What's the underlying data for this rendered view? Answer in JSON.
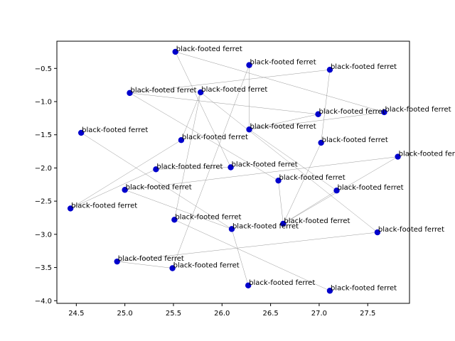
{
  "chart_data": {
    "type": "scatter",
    "title": "",
    "xlabel": "",
    "ylabel": "",
    "xlim": [
      24.3,
      27.93
    ],
    "ylim": [
      -4.04,
      -0.09
    ],
    "xticks": [
      24.5,
      25.0,
      25.5,
      26.0,
      26.5,
      27.0,
      27.5
    ],
    "xtick_labels": [
      "24.5",
      "25.0",
      "25.5",
      "26.0",
      "26.5",
      "27.0",
      "27.5"
    ],
    "yticks": [
      -4.0,
      -3.5,
      -3.0,
      -2.5,
      -2.0,
      -1.5,
      -1.0,
      -0.5
    ],
    "ytick_labels": [
      "−4.0",
      "−3.5",
      "−3.0",
      "−2.5",
      "−2.0",
      "−1.5",
      "−1.0",
      "−0.5"
    ],
    "grid": false,
    "marker_color": "#0000cc",
    "edge_color": "#999999",
    "points": [
      {
        "label": "black-footed ferret",
        "x": 25.52,
        "y": -0.25
      },
      {
        "label": "black-footed ferret",
        "x": 26.28,
        "y": -0.45
      },
      {
        "label": "black-footed ferret",
        "x": 27.11,
        "y": -0.52
      },
      {
        "label": "black-footed ferret",
        "x": 25.05,
        "y": -0.87
      },
      {
        "label": "black-footed ferret",
        "x": 25.78,
        "y": -0.86
      },
      {
        "label": "black-footed ferret",
        "x": 27.67,
        "y": -1.16
      },
      {
        "label": "black-footed ferret",
        "x": 26.99,
        "y": -1.19
      },
      {
        "label": "black-footed ferret",
        "x": 24.55,
        "y": -1.47
      },
      {
        "label": "black-footed ferret",
        "x": 26.28,
        "y": -1.42
      },
      {
        "label": "black-footed ferret",
        "x": 25.58,
        "y": -1.58
      },
      {
        "label": "black-footed ferret",
        "x": 27.02,
        "y": -1.62
      },
      {
        "label": "black-footed ferret",
        "x": 27.81,
        "y": -1.83
      },
      {
        "label": "black-footed ferret",
        "x": 25.32,
        "y": -2.02
      },
      {
        "label": "black-footed ferret",
        "x": 26.09,
        "y": -1.99
      },
      {
        "label": "black-footed ferret",
        "x": 26.58,
        "y": -2.19
      },
      {
        "label": "black-footed ferret",
        "x": 25.0,
        "y": -2.33
      },
      {
        "label": "black-footed ferret",
        "x": 27.18,
        "y": -2.34
      },
      {
        "label": "black-footed ferret",
        "x": 24.44,
        "y": -2.61
      },
      {
        "label": "black-footed ferret",
        "x": 25.51,
        "y": -2.78
      },
      {
        "label": "black-footed ferret",
        "x": 26.63,
        "y": -2.84
      },
      {
        "label": "black-footed ferret",
        "x": 26.1,
        "y": -2.92
      },
      {
        "label": "black-footed ferret",
        "x": 27.6,
        "y": -2.97
      },
      {
        "label": "black-footed ferret",
        "x": 24.92,
        "y": -3.41
      },
      {
        "label": "black-footed ferret",
        "x": 25.49,
        "y": -3.51
      },
      {
        "label": "black-footed ferret",
        "x": 26.27,
        "y": -3.77
      },
      {
        "label": "black-footed ferret",
        "x": 27.11,
        "y": -3.85
      }
    ],
    "edges": [
      [
        0,
        5
      ],
      [
        0,
        13
      ],
      [
        1,
        8
      ],
      [
        1,
        23
      ],
      [
        2,
        3
      ],
      [
        2,
        10
      ],
      [
        3,
        6
      ],
      [
        3,
        14
      ],
      [
        4,
        9
      ],
      [
        4,
        18
      ],
      [
        4,
        21
      ],
      [
        5,
        8
      ],
      [
        6,
        8
      ],
      [
        7,
        20
      ],
      [
        8,
        16
      ],
      [
        9,
        17
      ],
      [
        11,
        15
      ],
      [
        11,
        19
      ],
      [
        12,
        17
      ],
      [
        12,
        13
      ],
      [
        14,
        19
      ],
      [
        16,
        19
      ],
      [
        18,
        25
      ],
      [
        20,
        24
      ],
      [
        21,
        22
      ],
      [
        22,
        23
      ],
      [
        10,
        19
      ],
      [
        15,
        20
      ]
    ]
  }
}
